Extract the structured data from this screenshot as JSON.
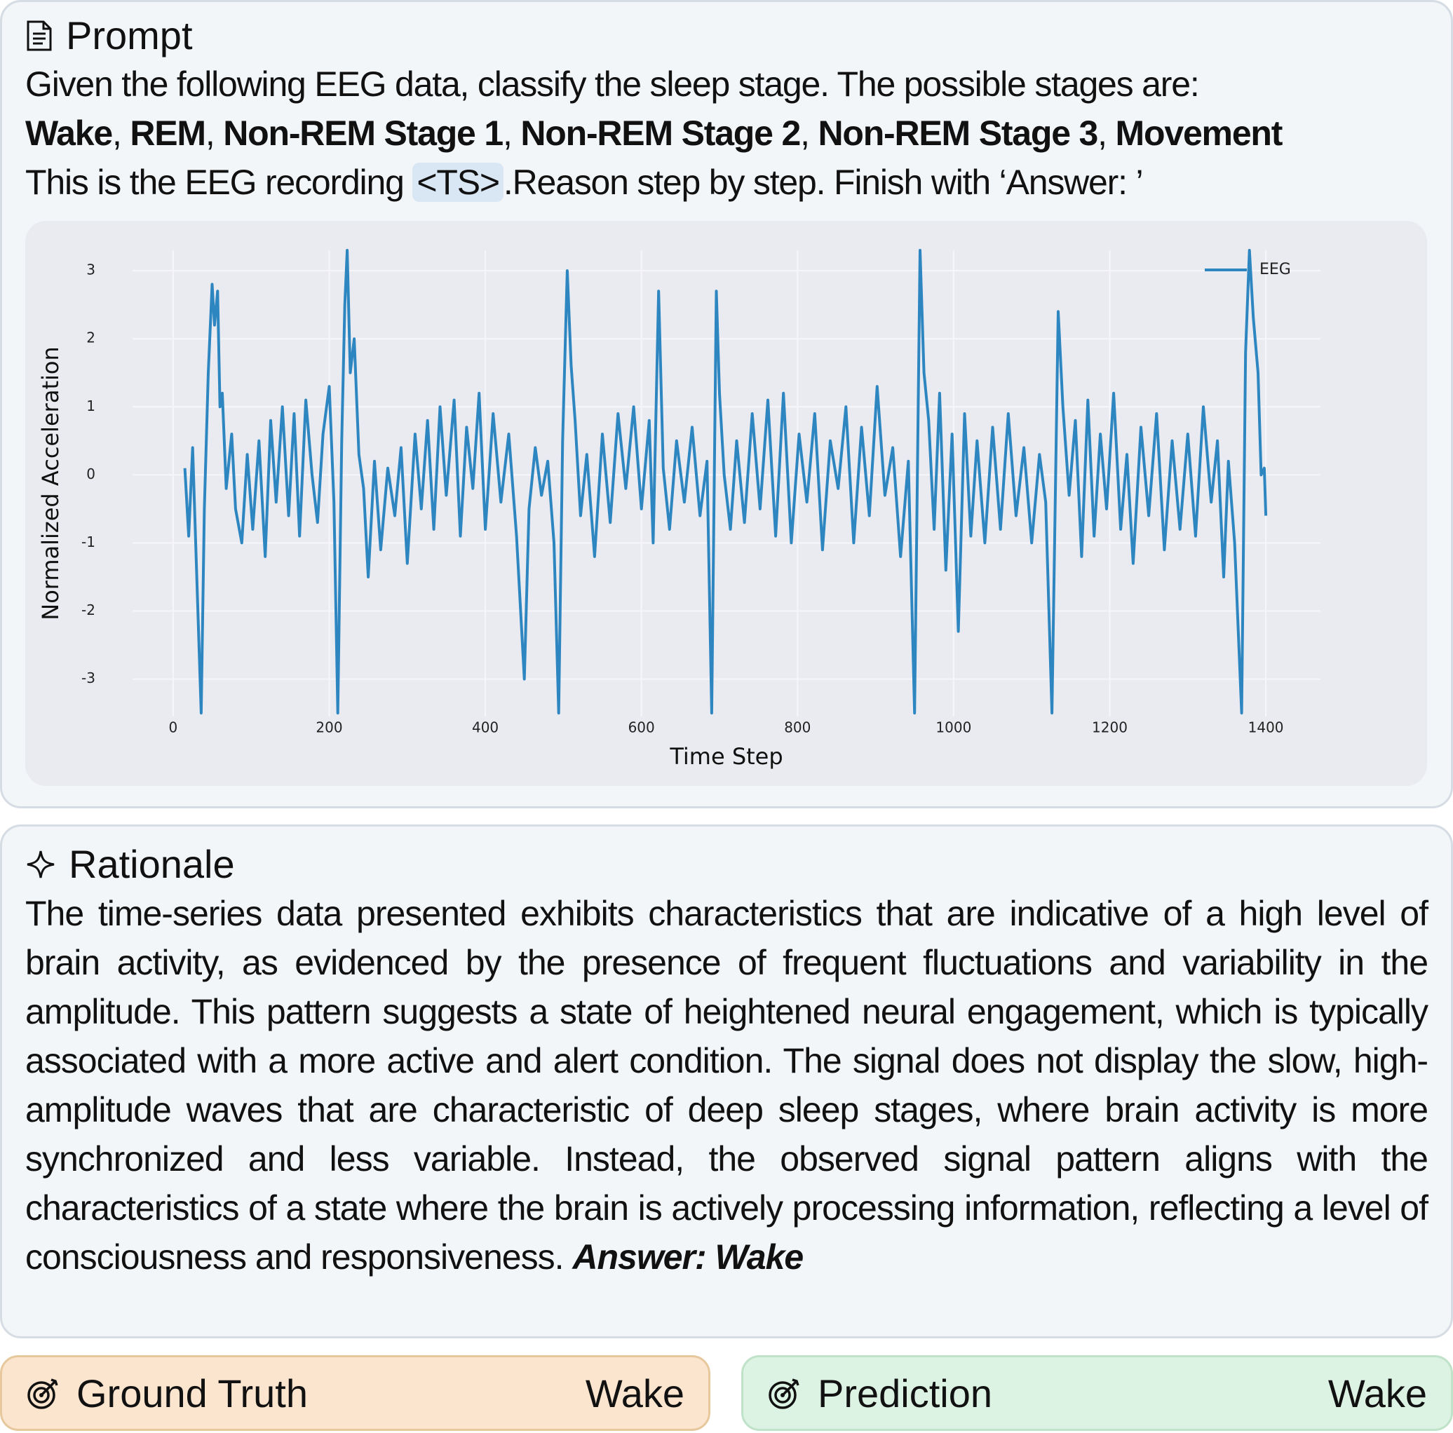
{
  "prompt": {
    "title": "Prompt",
    "line1": "Given the following EEG  data, classify the sleep stage. The possible stages are:",
    "stages": [
      "Wake",
      "REM",
      "Non-REM Stage 1",
      "Non-REM Stage 2",
      "Non-REM Stage 3",
      "Movement"
    ],
    "separator": ", ",
    "line3_start": "This is the EEG recording ",
    "placeholder": "<TS>",
    "line3_end": ".Reason step by step. Finish with ‘Answer: ’"
  },
  "chart_data": {
    "type": "line",
    "xlabel": "Time Step",
    "ylabel": "Normalized Acceleration",
    "xlim": [
      -52,
      1470
    ],
    "ylim": [
      -3.55,
      3.3
    ],
    "xticks": [
      0,
      200,
      400,
      600,
      800,
      1000,
      1200,
      1400
    ],
    "yticks": [
      -3,
      -2,
      -1,
      0,
      1,
      2,
      3
    ],
    "grid": true,
    "legend": "upper right",
    "x": [
      15,
      20,
      25,
      30,
      36,
      40,
      45,
      50,
      53,
      57,
      60,
      63,
      68,
      75,
      80,
      88,
      95,
      102,
      110,
      118,
      125,
      132,
      140,
      148,
      155,
      162,
      170,
      178,
      185,
      192,
      200,
      206,
      211,
      216,
      220,
      223,
      227,
      232,
      238,
      244,
      250,
      258,
      266,
      275,
      284,
      292,
      300,
      310,
      318,
      326,
      334,
      342,
      350,
      360,
      368,
      376,
      384,
      392,
      400,
      410,
      420,
      430,
      440,
      450,
      456,
      464,
      472,
      480,
      488,
      494,
      499,
      505,
      510,
      515,
      522,
      530,
      540,
      550,
      560,
      570,
      580,
      590,
      600,
      610,
      615,
      622,
      628,
      636,
      645,
      655,
      665,
      675,
      684,
      690,
      696,
      700,
      706,
      714,
      722,
      732,
      742,
      752,
      762,
      772,
      782,
      792,
      802,
      812,
      822,
      832,
      842,
      852,
      862,
      872,
      882,
      892,
      902,
      912,
      922,
      932,
      942,
      950,
      957,
      962,
      968,
      975,
      982,
      990,
      998,
      1006,
      1014,
      1022,
      1030,
      1040,
      1050,
      1060,
      1070,
      1080,
      1090,
      1100,
      1110,
      1118,
      1126,
      1134,
      1140,
      1148,
      1156,
      1164,
      1172,
      1180,
      1188,
      1196,
      1205,
      1214,
      1222,
      1230,
      1240,
      1250,
      1260,
      1270,
      1280,
      1290,
      1300,
      1310,
      1320,
      1330,
      1338,
      1346,
      1352,
      1360,
      1369,
      1374,
      1379,
      1384,
      1390,
      1394,
      1398,
      1400
    ],
    "series": [
      {
        "name": "EEG",
        "color": "#2e86c1",
        "values": [
          0.1,
          -0.9,
          0.4,
          -1.4,
          -3.5,
          -0.5,
          1.5,
          2.8,
          2.2,
          2.7,
          1.0,
          1.2,
          -0.2,
          0.6,
          -0.5,
          -1.0,
          0.3,
          -0.8,
          0.5,
          -1.2,
          0.8,
          -0.4,
          1.0,
          -0.6,
          0.9,
          -0.9,
          1.1,
          0.0,
          -0.7,
          0.6,
          1.3,
          -0.4,
          -3.5,
          0.5,
          2.5,
          3.3,
          1.5,
          2.0,
          0.3,
          -0.2,
          -1.5,
          0.2,
          -1.1,
          0.1,
          -0.6,
          0.4,
          -1.3,
          0.6,
          -0.5,
          0.8,
          -0.8,
          1.0,
          -0.3,
          1.1,
          -0.9,
          0.7,
          -0.2,
          1.2,
          -0.8,
          0.9,
          -0.4,
          0.6,
          -0.9,
          -3.0,
          -0.5,
          0.4,
          -0.3,
          0.2,
          -1.0,
          -3.5,
          0.5,
          3.0,
          1.6,
          0.8,
          -0.6,
          0.3,
          -1.2,
          0.6,
          -0.7,
          0.9,
          -0.2,
          1.0,
          -0.5,
          0.8,
          -1.0,
          2.7,
          0.1,
          -0.8,
          0.5,
          -0.4,
          0.7,
          -0.6,
          0.2,
          -3.5,
          2.7,
          1.2,
          0.0,
          -0.8,
          0.5,
          -0.7,
          0.9,
          -0.5,
          1.1,
          -0.9,
          1.2,
          -1.0,
          0.6,
          -0.4,
          0.9,
          -1.1,
          0.5,
          -0.2,
          1.0,
          -1.0,
          0.7,
          -0.6,
          1.3,
          -0.3,
          0.4,
          -1.2,
          0.2,
          -3.5,
          3.3,
          1.5,
          0.8,
          -0.8,
          1.2,
          -1.4,
          0.6,
          -2.3,
          0.9,
          -0.9,
          0.5,
          -1.0,
          0.7,
          -0.8,
          0.9,
          -0.6,
          0.4,
          -1.0,
          0.3,
          -0.4,
          -3.5,
          2.4,
          1.0,
          -0.3,
          0.8,
          -1.2,
          1.1,
          -0.9,
          0.6,
          -0.5,
          1.2,
          -0.8,
          0.3,
          -1.3,
          0.7,
          -0.6,
          0.9,
          -1.1,
          0.5,
          -0.8,
          0.6,
          -0.9,
          1.0,
          -0.4,
          0.5,
          -1.5,
          0.2,
          -1.0,
          -3.5,
          1.8,
          3.3,
          2.3,
          1.5,
          0.0,
          0.1,
          -0.6
        ]
      }
    ]
  },
  "rationale": {
    "title": "Rationale",
    "text": "The time-series data presented exhibits characteristics that are indicative of a high level of brain activity, as evidenced by the presence of frequent fluctuations and variability in the amplitude. This pattern suggests a state of heightened neural engagement, which is typically associated with a more active and alert condition. The signal does not display the slow, high-amplitude waves that are characteristic of deep sleep stages, where brain activity is more synchronized and less variable. Instead, the observed signal pattern aligns with the characteristics of a state where the brain is actively processing information, reflecting a level of consciousness and responsiveness. ",
    "answer": "Answer: Wake"
  },
  "ground_truth": {
    "label": "Ground Truth",
    "value": "Wake"
  },
  "prediction": {
    "label": "Prediction",
    "value": "Wake"
  }
}
